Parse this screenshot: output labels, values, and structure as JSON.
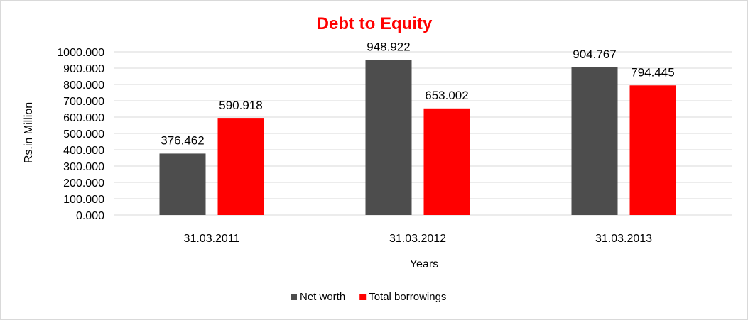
{
  "chart_data": {
    "type": "bar",
    "title": "Debt to Equity",
    "title_color": "#ff0000",
    "xlabel": "Years",
    "ylabel": "Rs.in Million",
    "categories": [
      "31.03.2011",
      "31.03.2012",
      "31.03.2013"
    ],
    "series": [
      {
        "name": "Net worth",
        "color": "#4d4d4d",
        "values": [
          376.462,
          948.922,
          904.767
        ]
      },
      {
        "name": "Total borrowings",
        "color": "#ff0000",
        "values": [
          590.918,
          653.002,
          794.445
        ]
      }
    ],
    "ylim": [
      0,
      1000
    ],
    "y_ticks": [
      "0.000",
      "100.000",
      "200.000",
      "300.000",
      "400.000",
      "500.000",
      "600.000",
      "700.000",
      "800.000",
      "900.000",
      "1000.000"
    ],
    "grid": true,
    "gridline_color": "#d9d9d9",
    "legend_position": "bottom"
  }
}
